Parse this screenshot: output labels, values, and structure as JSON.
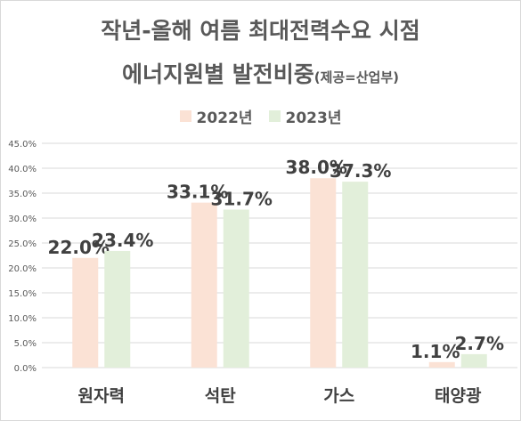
{
  "title_line1": "작년-올해 여름 최대전력수요 시점",
  "title_line2": "에너지원별 발전비중",
  "title_source": "(제공=산업부)",
  "legend": {
    "s0": "2022년",
    "s1": "2023년"
  },
  "colors": {
    "s0": "#fbe2d5",
    "s1": "#e2efda",
    "grid": "#d9d9d9",
    "text": "#595959"
  },
  "chart_data": {
    "type": "bar",
    "title": "작년-올해 여름 최대전력수요 시점 에너지원별 발전비중(제공=산업부)",
    "categories": [
      "원자력",
      "석탄",
      "가스",
      "태양광"
    ],
    "series": [
      {
        "name": "2022년",
        "values": [
          22.0,
          33.1,
          38.0,
          1.1
        ],
        "labels": [
          "22.0%",
          "33.1%",
          "38.0%",
          "1.1%"
        ]
      },
      {
        "name": "2023년",
        "values": [
          23.4,
          31.7,
          37.3,
          2.7
        ],
        "labels": [
          "23.4%",
          "31.7%",
          "37.3%",
          "2.7%"
        ]
      }
    ],
    "y_ticks": [
      "0.0%",
      "5.0%",
      "10.0%",
      "15.0%",
      "20.0%",
      "25.0%",
      "30.0%",
      "35.0%",
      "40.0%",
      "45.0%"
    ],
    "ylim": [
      0,
      45
    ],
    "grid": true,
    "legend_position": "top"
  }
}
